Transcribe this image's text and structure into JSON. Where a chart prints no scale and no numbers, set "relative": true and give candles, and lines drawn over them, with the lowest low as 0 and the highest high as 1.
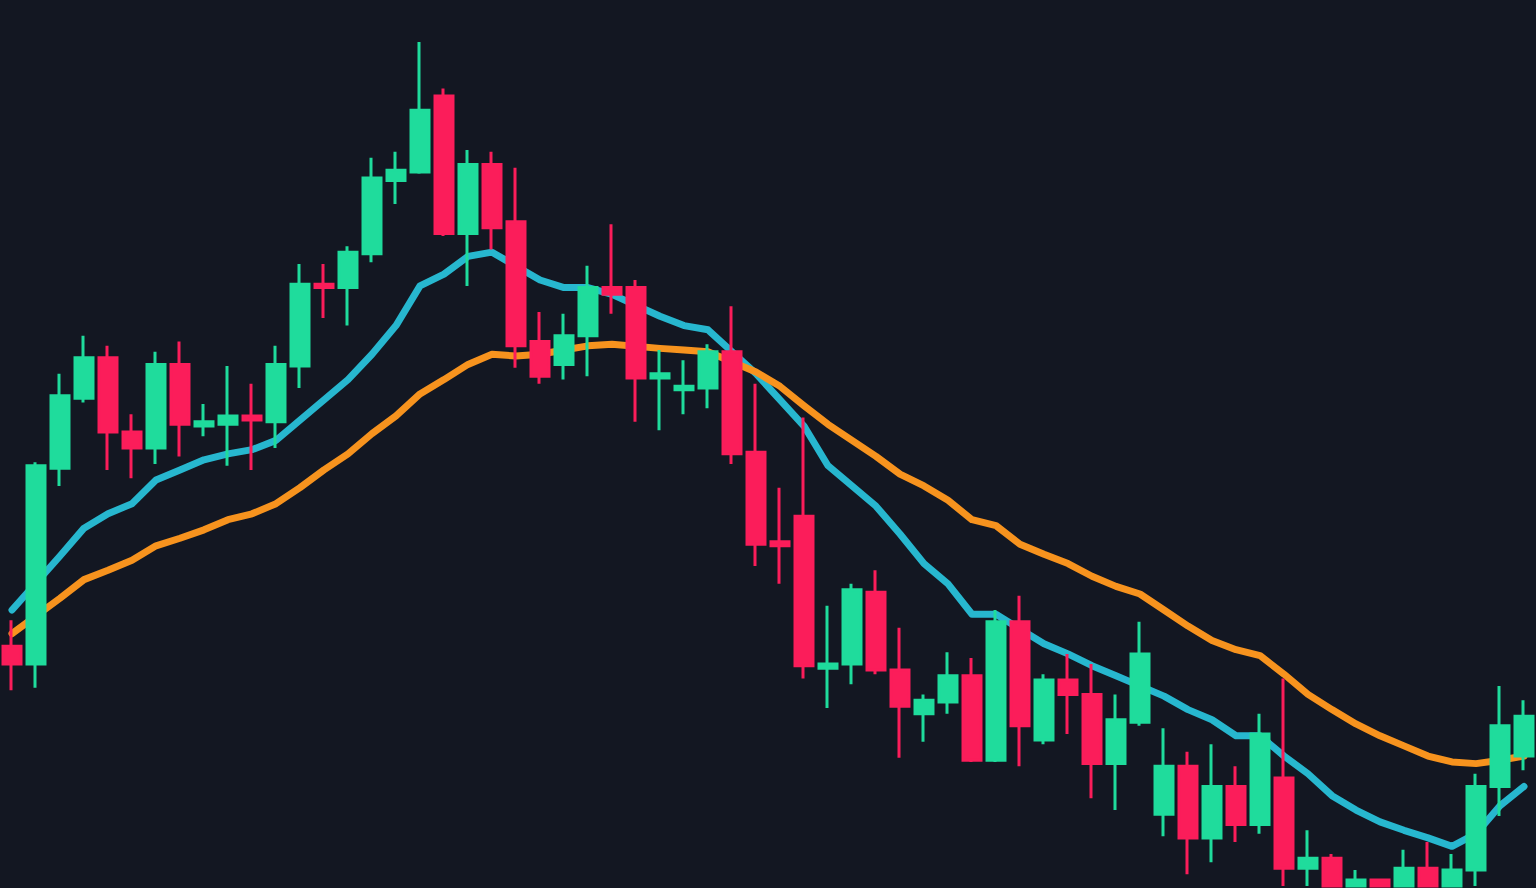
{
  "chart_data": {
    "type": "candlestick",
    "relative": true,
    "grid": false,
    "marker": "none",
    "line_style": "solid",
    "categories": [
      null,
      null,
      null,
      null,
      null,
      null,
      null,
      null,
      null,
      null,
      null,
      null,
      null,
      null,
      null,
      null,
      null,
      null,
      null,
      null,
      null,
      null,
      null,
      null,
      null,
      null,
      null,
      null,
      null,
      null,
      null,
      null,
      null,
      null,
      null,
      null,
      null,
      null,
      null,
      null,
      null,
      null,
      null,
      null,
      null,
      null,
      null,
      null,
      null,
      null,
      null,
      null,
      null,
      null,
      null,
      null,
      null,
      null,
      null,
      null,
      null,
      null,
      null,
      null
    ],
    "ohlc": [
      [
        0.284,
        0.315,
        0.232,
        0.263
      ],
      [
        0.263,
        0.502,
        0.235,
        0.498
      ],
      [
        0.495,
        0.607,
        0.474,
        0.581
      ],
      [
        0.578,
        0.652,
        0.573,
        0.626
      ],
      [
        0.626,
        0.64,
        0.493,
        0.538
      ],
      [
        0.538,
        0.559,
        0.483,
        0.519
      ],
      [
        0.519,
        0.633,
        0.5,
        0.618
      ],
      [
        0.618,
        0.645,
        0.509,
        0.547
      ],
      [
        0.545,
        0.571,
        0.533,
        0.55
      ],
      [
        0.547,
        0.616,
        0.498,
        0.557
      ],
      [
        0.557,
        0.595,
        0.493,
        0.552
      ],
      [
        0.55,
        0.64,
        0.519,
        0.618
      ],
      [
        0.616,
        0.737,
        0.59,
        0.713
      ],
      [
        0.713,
        0.737,
        0.673,
        0.709
      ],
      [
        0.709,
        0.758,
        0.664,
        0.751
      ],
      [
        0.749,
        0.863,
        0.739,
        0.839
      ],
      [
        0.836,
        0.87,
        0.808,
        0.848
      ],
      [
        0.846,
        1,
        0.844,
        0.919
      ],
      [
        0.936,
        0.945,
        0.77,
        0.773
      ],
      [
        0.773,
        0.872,
        0.711,
        0.855
      ],
      [
        0.855,
        0.87,
        0.754,
        0.78
      ],
      [
        0.787,
        0.851,
        0.614,
        0.64
      ],
      [
        0.645,
        0.68,
        0.595,
        0.604
      ],
      [
        0.618,
        0.678,
        0.6,
        0.652
      ],
      [
        0.652,
        0.735,
        0.604,
        0.709
      ],
      [
        0.709,
        0.784,
        0.678,
        0.701
      ],
      [
        0.709,
        0.718,
        0.55,
        0.602
      ],
      [
        0.602,
        0.635,
        0.54,
        0.607
      ],
      [
        0.588,
        0.623,
        0.559,
        0.592
      ],
      [
        0.59,
        0.642,
        0.566,
        0.633
      ],
      [
        0.633,
        0.687,
        0.5,
        0.512
      ],
      [
        0.514,
        0.595,
        0.379,
        0.405
      ],
      [
        0.408,
        0.472,
        0.358,
        0.403
      ],
      [
        0.438,
        0.555,
        0.246,
        0.261
      ],
      [
        0.258,
        0.332,
        0.211,
        0.263
      ],
      [
        0.263,
        0.358,
        0.239,
        0.351
      ],
      [
        0.348,
        0.374,
        0.251,
        0.256
      ],
      [
        0.256,
        0.306,
        0.152,
        0.213
      ],
      [
        0.204,
        0.227,
        0.171,
        0.22
      ],
      [
        0.218,
        0.277,
        0.204,
        0.249
      ],
      [
        0.249,
        0.27,
        0.147,
        0.149
      ],
      [
        0.149,
        0.327,
        0.147,
        0.313
      ],
      [
        0.313,
        0.344,
        0.142,
        0.19
      ],
      [
        0.173,
        0.251,
        0.168,
        0.244
      ],
      [
        0.244,
        0.275,
        0.18,
        0.227
      ],
      [
        0.227,
        0.263,
        0.104,
        0.145
      ],
      [
        0.145,
        0.227,
        0.09,
        0.197
      ],
      [
        0.194,
        0.313,
        0.19,
        0.275
      ],
      [
        0.085,
        0.187,
        0.059,
        0.142
      ],
      [
        0.142,
        0.159,
        0.014,
        0.057
      ],
      [
        0.057,
        0.168,
        0.028,
        0.118
      ],
      [
        0.118,
        0.142,
        0.052,
        0.073
      ],
      [
        0.073,
        0.204,
        0.062,
        0.18
      ],
      [
        0.128,
        0.246,
        0,
        0.021
      ],
      [
        0.021,
        0.066,
        0,
        0.033
      ],
      [
        0.033,
        0.038,
        0,
        0
      ],
      [
        0,
        0.019,
        0,
        0.007
      ],
      [
        0.007,
        0.009,
        0,
        0
      ],
      [
        0,
        0.043,
        0,
        0.021
      ],
      [
        0.021,
        0.052,
        0,
        0
      ],
      [
        0,
        0.038,
        0,
        0.019
      ],
      [
        0.019,
        0.133,
        0,
        0.118
      ],
      [
        0.118,
        0.237,
        0.083,
        0.19
      ],
      [
        0.154,
        0.22,
        0.137,
        0.201
      ]
    ],
    "colors": [
      "#fb1d5a",
      "#1fdc9c",
      "#1fdc9c",
      "#1fdc9c",
      "#fb1d5a",
      "#fb1d5a",
      "#1fdc9c",
      "#fb1d5a",
      "#1fdc9c",
      "#1fdc9c",
      "#fb1d5a",
      "#1fdc9c",
      "#1fdc9c",
      "#fb1d5a",
      "#1fdc9c",
      "#1fdc9c",
      "#1fdc9c",
      "#1fdc9c",
      "#fb1d5a",
      "#1fdc9c",
      "#fb1d5a",
      "#fb1d5a",
      "#fb1d5a",
      "#1fdc9c",
      "#1fdc9c",
      "#fb1d5a",
      "#fb1d5a",
      "#1fdc9c",
      "#1fdc9c",
      "#1fdc9c",
      "#fb1d5a",
      "#fb1d5a",
      "#fb1d5a",
      "#fb1d5a",
      "#1fdc9c",
      "#1fdc9c",
      "#fb1d5a",
      "#fb1d5a",
      "#1fdc9c",
      "#1fdc9c",
      "#fb1d5a",
      "#1fdc9c",
      "#fb1d5a",
      "#1fdc9c",
      "#fb1d5a",
      "#fb1d5a",
      "#1fdc9c",
      "#1fdc9c",
      "#1fdc9c",
      "#fb1d5a",
      "#1fdc9c",
      "#fb1d5a",
      "#1fdc9c",
      "#fb1d5a",
      "#1fdc9c",
      "#fb1d5a",
      "#1fdc9c",
      "#fb1d5a",
      "#1fdc9c",
      "#fb1d5a",
      "#1fdc9c",
      "#1fdc9c",
      "#1fdc9c",
      "#1fdc9c"
    ],
    "series": [
      {
        "type": "line",
        "color": "#27b7cf",
        "values": [
          0.327,
          null,
          0.391,
          0.424,
          0.441,
          0.453,
          0.481,
          0.493,
          0.505,
          0.512,
          0.517,
          0.528,
          0.552,
          0.576,
          0.6,
          0.63,
          0.664,
          0.711,
          0.725,
          0.746,
          0.751,
          null,
          0.718,
          0.709,
          0.709,
          0.701,
          null,
          0.675,
          0.664,
          0.659,
          0.633,
          0.607,
          0.576,
          0.545,
          0.498,
          0.474,
          0.45,
          0.417,
          0.382,
          0.358,
          0.322,
          0.322,
          null,
          0.287,
          0.275,
          0.261,
          0.249,
          null,
          0.225,
          0.209,
          0.197,
          0.178,
          0.178,
          0.154,
          0.133,
          0.107,
          0.09,
          0.076,
          0.066,
          0.057,
          0.047,
          0.062,
          0.095,
          0.118
        ]
      },
      {
        "type": "line",
        "color": "#f7931e",
        "values": [
          0.299,
          null,
          0.341,
          0.363,
          0.374,
          0.386,
          0.403,
          0.412,
          0.422,
          0.434,
          0.441,
          0.453,
          0.472,
          0.493,
          0.512,
          0.536,
          0.557,
          0.583,
          0.6,
          0.618,
          0.63,
          0.628,
          0.63,
          0.635,
          0.64,
          0.642,
          null,
          0.637,
          0.635,
          0.633,
          null,
          0.609,
          0.592,
          0.569,
          0.547,
          0.528,
          0.509,
          0.488,
          0.474,
          0.457,
          0.434,
          0.427,
          0.405,
          0.393,
          0.382,
          0.367,
          0.355,
          0.346,
          0.327,
          0.308,
          0.291,
          0.28,
          0.273,
          0.251,
          0.227,
          0.209,
          0.192,
          0.178,
          0.166,
          0.154,
          0.147,
          0.145,
          0.149,
          0.154
        ]
      }
    ]
  }
}
